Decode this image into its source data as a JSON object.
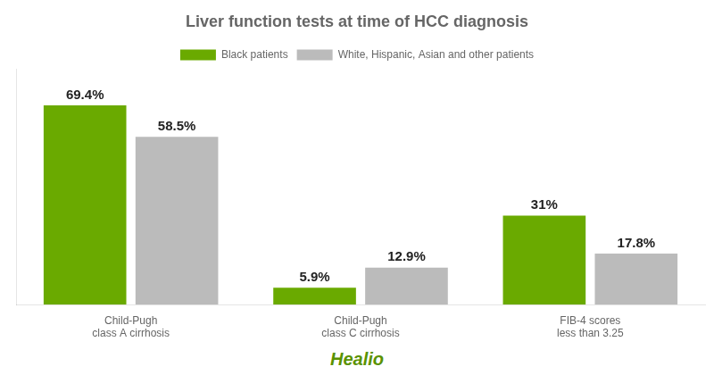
{
  "chart_data": {
    "type": "bar",
    "title": "Liver function tests at time of HCC diagnosis",
    "categories": [
      "Child-Pugh\nclass A cirrhosis",
      "Child-Pugh\nclass C cirrhosis",
      "FIB-4 scores\nless than 3.25"
    ],
    "series": [
      {
        "name": "Black patients",
        "color": "#6aaa00",
        "values": [
          69.4,
          5.9,
          31.0
        ],
        "value_labels": [
          "69.4%",
          "5.9%",
          "31%"
        ]
      },
      {
        "name": "White, Hispanic, Asian and other patients",
        "color": "#bbbbbb",
        "values": [
          58.5,
          12.9,
          17.8
        ],
        "value_labels": [
          "58.5%",
          "12.9%",
          "17.8%"
        ]
      }
    ],
    "ylim": [
      0,
      82
    ],
    "grid": false,
    "legend": "top",
    "data_labels": true,
    "tick_labels": "x",
    "annotations": [
      "Healio"
    ]
  }
}
